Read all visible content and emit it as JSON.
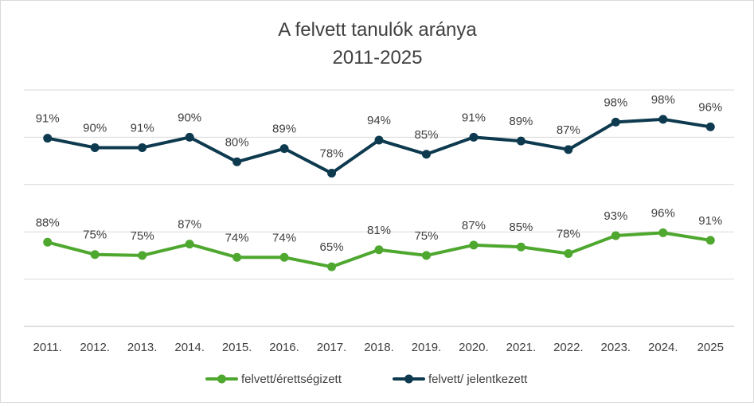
{
  "chart_data": {
    "type": "line",
    "title_lines": [
      "A felvett tanulók aránya",
      "2011-2025"
    ],
    "xlabel": "",
    "ylabel": "",
    "categories": [
      "2011.",
      "2012.",
      "2013.",
      "2014.",
      "2015.",
      "2016.",
      "2017.",
      "2018.",
      "2019.",
      "2020.",
      "2021.",
      "2022.",
      "2023.",
      "2024.",
      "2025"
    ],
    "series": [
      {
        "name": "felvett/ jelentkezett",
        "color": "#0e3a4f",
        "values": [
          91,
          90,
          91,
          90,
          80,
          89,
          78,
          94,
          85,
          91,
          89,
          87,
          98,
          98,
          96
        ],
        "labels": [
          "91%",
          "90%",
          "91%",
          "90%",
          "80%",
          "89%",
          "78%",
          "94%",
          "85%",
          "91%",
          "89%",
          "87%",
          "98%",
          "98%",
          "96%"
        ],
        "plot_y": [
          1.99,
          1.89,
          1.89,
          2.0,
          1.74,
          1.88,
          1.62,
          1.97,
          1.82,
          2.0,
          1.96,
          1.87,
          2.16,
          2.19,
          2.11
        ]
      },
      {
        "name": "felvett/érettségizett",
        "color": "#4ea72e",
        "values": [
          88,
          75,
          75,
          87,
          74,
          74,
          65,
          81,
          75,
          87,
          85,
          78,
          93,
          96,
          91
        ],
        "labels": [
          "88%",
          "75%",
          "75%",
          "87%",
          "74%",
          "74%",
          "65%",
          "81%",
          "75%",
          "87%",
          "85%",
          "78%",
          "93%",
          "96%",
          "91%"
        ],
        "plot_y": [
          0.89,
          0.76,
          0.75,
          0.87,
          0.73,
          0.73,
          0.63,
          0.81,
          0.75,
          0.86,
          0.84,
          0.77,
          0.96,
          0.99,
          0.91
        ]
      }
    ],
    "ylim": [
      0,
      2.5
    ],
    "grid": true,
    "y_axis_labels": false,
    "legend_position": "bottom"
  }
}
